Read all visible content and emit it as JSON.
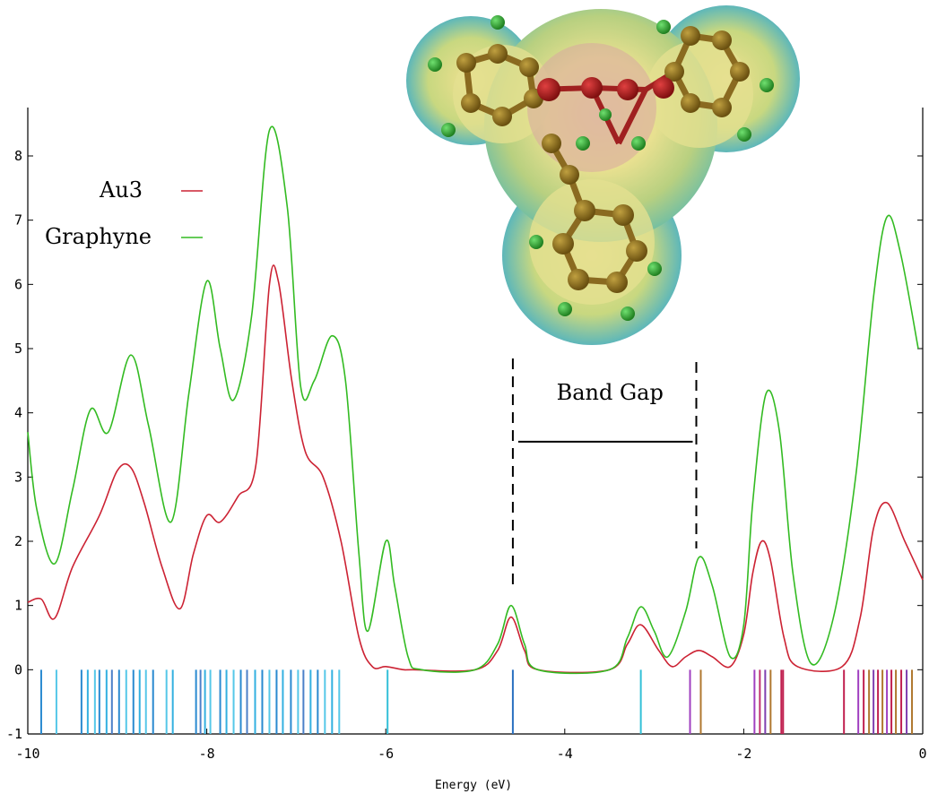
{
  "chart_data": {
    "type": "line",
    "title": "",
    "xlabel": "Energy (eV)",
    "ylabel": "",
    "xlim": [
      -10,
      0
    ],
    "ylim": [
      -1,
      8.5
    ],
    "xticks": [
      -10,
      -8,
      -6,
      -4,
      -2,
      0
    ],
    "xtick_labels": [
      "-10",
      "-8",
      "-6",
      "-4",
      "-2",
      "0"
    ],
    "yticks": [
      -1,
      0,
      1,
      2,
      3,
      4,
      5,
      6,
      7,
      8
    ],
    "ytick_labels": [
      "-1",
      "0",
      "1",
      "2",
      "3",
      "4",
      "5",
      "6",
      "7",
      "8"
    ],
    "grid": false,
    "legend_position": "top-left",
    "series": [
      {
        "name": "Au3",
        "color": "#cc2233",
        "points": [
          [
            -10,
            1.05
          ],
          [
            -9.85,
            1.1
          ],
          [
            -9.7,
            0.8
          ],
          [
            -9.5,
            1.6
          ],
          [
            -9.2,
            2.4
          ],
          [
            -9.0,
            3.1
          ],
          [
            -8.85,
            3.15
          ],
          [
            -8.7,
            2.6
          ],
          [
            -8.5,
            1.6
          ],
          [
            -8.3,
            0.95
          ],
          [
            -8.15,
            1.8
          ],
          [
            -8.0,
            2.4
          ],
          [
            -7.85,
            2.3
          ],
          [
            -7.65,
            2.7
          ],
          [
            -7.45,
            3.2
          ],
          [
            -7.3,
            6.0
          ],
          [
            -7.2,
            6.05
          ],
          [
            -7.05,
            4.5
          ],
          [
            -6.9,
            3.4
          ],
          [
            -6.7,
            3.0
          ],
          [
            -6.5,
            2.0
          ],
          [
            -6.3,
            0.5
          ],
          [
            -6.15,
            0.05
          ],
          [
            -6.0,
            0.05
          ],
          [
            -5.8,
            0.0
          ],
          [
            -5.7,
            0.0
          ],
          [
            -5.0,
            0.0
          ],
          [
            -4.75,
            0.3
          ],
          [
            -4.6,
            0.82
          ],
          [
            -4.45,
            0.3
          ],
          [
            -4.3,
            0.0
          ],
          [
            -3.5,
            0.0
          ],
          [
            -3.3,
            0.4
          ],
          [
            -3.15,
            0.7
          ],
          [
            -2.95,
            0.3
          ],
          [
            -2.8,
            0.05
          ],
          [
            -2.65,
            0.2
          ],
          [
            -2.5,
            0.3
          ],
          [
            -2.35,
            0.2
          ],
          [
            -2.15,
            0.05
          ],
          [
            -2.0,
            0.55
          ],
          [
            -1.9,
            1.5
          ],
          [
            -1.8,
            2.0
          ],
          [
            -1.7,
            1.7
          ],
          [
            -1.55,
            0.5
          ],
          [
            -1.4,
            0.05
          ],
          [
            -0.9,
            0.05
          ],
          [
            -0.7,
            0.8
          ],
          [
            -0.55,
            2.2
          ],
          [
            -0.4,
            2.6
          ],
          [
            -0.2,
            2.0
          ],
          [
            0,
            1.4
          ]
        ]
      },
      {
        "name": "Graphyne",
        "color": "#33bb22",
        "points": [
          [
            -10,
            3.7
          ],
          [
            -9.9,
            2.5
          ],
          [
            -9.7,
            1.65
          ],
          [
            -9.5,
            2.8
          ],
          [
            -9.3,
            4.05
          ],
          [
            -9.1,
            3.7
          ],
          [
            -8.85,
            4.9
          ],
          [
            -8.65,
            3.8
          ],
          [
            -8.4,
            2.3
          ],
          [
            -8.2,
            4.3
          ],
          [
            -8.0,
            6.05
          ],
          [
            -7.85,
            5.0
          ],
          [
            -7.7,
            4.2
          ],
          [
            -7.5,
            5.5
          ],
          [
            -7.3,
            8.4
          ],
          [
            -7.1,
            7.2
          ],
          [
            -6.95,
            4.4
          ],
          [
            -6.8,
            4.5
          ],
          [
            -6.6,
            5.2
          ],
          [
            -6.45,
            4.5
          ],
          [
            -6.3,
            1.8
          ],
          [
            -6.2,
            0.6
          ],
          [
            -6.0,
            2.0
          ],
          [
            -5.9,
            1.3
          ],
          [
            -5.75,
            0.2
          ],
          [
            -5.6,
            0.0
          ],
          [
            -5.0,
            0.0
          ],
          [
            -4.75,
            0.4
          ],
          [
            -4.6,
            1.0
          ],
          [
            -4.45,
            0.4
          ],
          [
            -4.3,
            0.0
          ],
          [
            -3.5,
            0.0
          ],
          [
            -3.3,
            0.5
          ],
          [
            -3.15,
            0.98
          ],
          [
            -3.0,
            0.6
          ],
          [
            -2.85,
            0.2
          ],
          [
            -2.65,
            0.9
          ],
          [
            -2.5,
            1.75
          ],
          [
            -2.35,
            1.3
          ],
          [
            -2.15,
            0.2
          ],
          [
            -2.0,
            0.7
          ],
          [
            -1.9,
            2.6
          ],
          [
            -1.75,
            4.3
          ],
          [
            -1.6,
            3.7
          ],
          [
            -1.45,
            1.5
          ],
          [
            -1.25,
            0.1
          ],
          [
            -1.0,
            0.8
          ],
          [
            -0.75,
            3.0
          ],
          [
            -0.55,
            5.8
          ],
          [
            -0.4,
            7.05
          ],
          [
            -0.25,
            6.5
          ],
          [
            -0.05,
            5.0
          ]
        ]
      }
    ],
    "levels": {
      "y_bottom": -1,
      "y_top": 0,
      "lines": [
        {
          "x": -9.85,
          "color": "#2a8ad0"
        },
        {
          "x": -9.68,
          "color": "#55c7e8"
        },
        {
          "x": -9.4,
          "color": "#2a8ad0"
        },
        {
          "x": -9.33,
          "color": "#33b0e0"
        },
        {
          "x": -9.25,
          "color": "#55c7e8"
        },
        {
          "x": -9.2,
          "color": "#2a8ad0"
        },
        {
          "x": -9.12,
          "color": "#33b0e0"
        },
        {
          "x": -9.06,
          "color": "#4c80c8"
        },
        {
          "x": -8.98,
          "color": "#2a8ad0"
        },
        {
          "x": -8.9,
          "color": "#55c7e8"
        },
        {
          "x": -8.82,
          "color": "#2a8ad0"
        },
        {
          "x": -8.75,
          "color": "#33b0e0"
        },
        {
          "x": -8.68,
          "color": "#55c7e8"
        },
        {
          "x": -8.6,
          "color": "#2a8ad0"
        },
        {
          "x": -8.45,
          "color": "#55c7e8"
        },
        {
          "x": -8.38,
          "color": "#33b0e0"
        },
        {
          "x": -8.12,
          "color": "#2a8ad0"
        },
        {
          "x": -8.07,
          "color": "#4c80c8"
        },
        {
          "x": -8.02,
          "color": "#33b0e0"
        },
        {
          "x": -7.96,
          "color": "#55c7e8"
        },
        {
          "x": -7.85,
          "color": "#2a8ad0"
        },
        {
          "x": -7.78,
          "color": "#33b0e0"
        },
        {
          "x": -7.7,
          "color": "#55c7e8"
        },
        {
          "x": -7.62,
          "color": "#2a8ad0"
        },
        {
          "x": -7.55,
          "color": "#4c80c8"
        },
        {
          "x": -7.46,
          "color": "#33b0e0"
        },
        {
          "x": -7.38,
          "color": "#2a8ad0"
        },
        {
          "x": -7.3,
          "color": "#55c7e8"
        },
        {
          "x": -7.22,
          "color": "#2a8ad0"
        },
        {
          "x": -7.15,
          "color": "#33b0e0"
        },
        {
          "x": -7.06,
          "color": "#2a8ad0"
        },
        {
          "x": -6.98,
          "color": "#55c7e8"
        },
        {
          "x": -6.92,
          "color": "#4c80c8"
        },
        {
          "x": -6.84,
          "color": "#33b0e0"
        },
        {
          "x": -6.76,
          "color": "#2a8ad0"
        },
        {
          "x": -6.68,
          "color": "#55c7e8"
        },
        {
          "x": -6.6,
          "color": "#33b0e0"
        },
        {
          "x": -6.52,
          "color": "#55c7e8"
        },
        {
          "x": -5.98,
          "color": "#33c0d8"
        },
        {
          "x": -4.58,
          "color": "#2a70c0"
        },
        {
          "x": -3.15,
          "color": "#33c0d8"
        },
        {
          "x": -2.6,
          "color": "#a040c0"
        },
        {
          "x": -2.48,
          "color": "#b07830"
        },
        {
          "x": -1.88,
          "color": "#a040c0"
        },
        {
          "x": -1.82,
          "color": "#c03070"
        },
        {
          "x": -1.76,
          "color": "#8040b0"
        },
        {
          "x": -1.7,
          "color": "#b07830"
        },
        {
          "x": -1.58,
          "color": "#c02050"
        },
        {
          "x": -1.56,
          "color": "#c02050"
        },
        {
          "x": -0.88,
          "color": "#c02050"
        },
        {
          "x": -0.72,
          "color": "#a040c0"
        },
        {
          "x": -0.66,
          "color": "#c02050"
        },
        {
          "x": -0.6,
          "color": "#b07830"
        },
        {
          "x": -0.55,
          "color": "#8040b0"
        },
        {
          "x": -0.5,
          "color": "#c02050"
        },
        {
          "x": -0.45,
          "color": "#b07830"
        },
        {
          "x": -0.4,
          "color": "#a040c0"
        },
        {
          "x": -0.35,
          "color": "#c02050"
        },
        {
          "x": -0.3,
          "color": "#b07830"
        },
        {
          "x": -0.24,
          "color": "#c02050"
        },
        {
          "x": -0.18,
          "color": "#8040b0"
        },
        {
          "x": -0.12,
          "color": "#b07830"
        }
      ]
    },
    "annotations": {
      "band_gap_label": "Band Gap",
      "band_gap_from": -4.58,
      "band_gap_to": -2.53,
      "band_gap_y": 3.55
    }
  }
}
